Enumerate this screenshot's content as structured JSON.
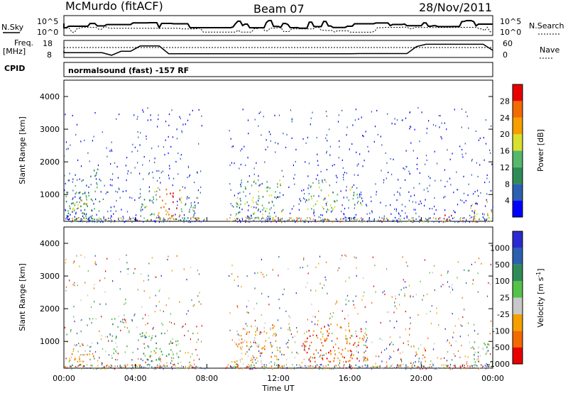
{
  "header": {
    "station": "McMurdo (fitACF)",
    "beam": "Beam 07",
    "date": "28/Nov/2011"
  },
  "top_panel": {
    "nsky_label": "N.Sky",
    "nsky_ticks": [
      "10^5",
      "10^0"
    ],
    "nsearch_label": "N.Search",
    "freq_label": "Freq.",
    "freq_unit": "[MHz]",
    "freq_ticks": [
      "18",
      "8"
    ],
    "nave_ticks": [
      "60",
      "0"
    ],
    "nave_label": "Nave",
    "cpid_label": "CPID",
    "cpid_text": "normalsound (fast) -157 RF"
  },
  "chart_data": [
    {
      "type": "heatmap",
      "name": "power",
      "ylabel": "Slant Range [km]",
      "ylim": [
        180,
        4500
      ],
      "yticks": [
        "1000",
        "2000",
        "3000",
        "4000"
      ],
      "xlim": [
        0,
        24
      ],
      "colorbar_label": "Power [dB]",
      "colorbar_ticks": [
        "28",
        "24",
        "20",
        "16",
        "12",
        "8",
        "4"
      ],
      "colorbar_colors": [
        "#0000ff",
        "#2c5fb0",
        "#2e8b57",
        "#55b86a",
        "#d8e030",
        "#f5a000",
        "#f36a00",
        "#e80000"
      ],
      "scatter_blobs": [
        {
          "t0": 0.0,
          "t1": 2.0,
          "r0": 200,
          "r1": 1800,
          "level": 2
        },
        {
          "t0": 0.2,
          "t1": 1.6,
          "r0": 500,
          "r1": 900,
          "level": 4
        },
        {
          "t0": 4.2,
          "t1": 5.2,
          "r0": 400,
          "r1": 1200,
          "level": 3
        },
        {
          "t0": 5.2,
          "t1": 6.5,
          "r0": 300,
          "r1": 1300,
          "level": 6
        },
        {
          "t0": 6.5,
          "t1": 7.6,
          "r0": 300,
          "r1": 1100,
          "level": 3
        },
        {
          "t0": 9.5,
          "t1": 12.2,
          "r0": 300,
          "r1": 1500,
          "level": 3
        },
        {
          "t0": 13.6,
          "t1": 15.3,
          "r0": 500,
          "r1": 1500,
          "level": 3
        },
        {
          "t0": 15.8,
          "t1": 16.7,
          "r0": 700,
          "r1": 1300,
          "level": 3
        },
        {
          "t0": 21.3,
          "t1": 21.8,
          "r0": 200,
          "r1": 400,
          "level": 7
        },
        {
          "t0": 22.7,
          "t1": 24.0,
          "r0": 200,
          "r1": 800,
          "level": 4
        }
      ]
    },
    {
      "type": "heatmap",
      "name": "velocity",
      "ylabel": "Slant Range [km]",
      "ylim": [
        180,
        4500
      ],
      "yticks": [
        "1000",
        "2000",
        "3000",
        "4000"
      ],
      "xlim": [
        0,
        24
      ],
      "xticks": [
        "00:00",
        "04:00",
        "08:00",
        "12:00",
        "16:00",
        "20:00",
        "00:00"
      ],
      "xlabel": "Time UT",
      "colorbar_label": "Velocity [m s",
      "colorbar_exponent": "-1",
      "colorbar_unit_close": "]",
      "colorbar_ticks": [
        "1000",
        "500",
        "100",
        "25",
        "-25",
        "-100",
        "-500",
        "-1000"
      ],
      "colorbar_colors": [
        "#e80000",
        "#f36a00",
        "#f5a000",
        "#c8c8c8",
        "#55c24a",
        "#2e8b57",
        "#2c5fb0",
        "#2a2ad0"
      ],
      "scatter_blobs": [
        {
          "t0": 0.3,
          "t1": 1.7,
          "r0": 400,
          "r1": 1000,
          "level": 2
        },
        {
          "t0": 2.5,
          "t1": 3.0,
          "r0": 600,
          "r1": 1800,
          "level": 4
        },
        {
          "t0": 4.3,
          "t1": 6.5,
          "r0": 400,
          "r1": 1300,
          "level": 4
        },
        {
          "t0": 9.5,
          "t1": 12.0,
          "r0": 300,
          "r1": 1500,
          "level": 2
        },
        {
          "t0": 13.4,
          "t1": 17.0,
          "r0": 400,
          "r1": 1600,
          "level": 1
        },
        {
          "t0": 19.6,
          "t1": 20.2,
          "r0": 500,
          "r1": 1000,
          "level": 2
        },
        {
          "t0": 22.8,
          "t1": 24.0,
          "r0": 300,
          "r1": 1000,
          "level": 4
        }
      ]
    }
  ]
}
